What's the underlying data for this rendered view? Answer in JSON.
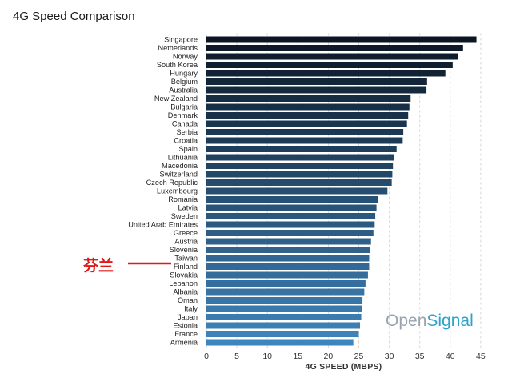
{
  "header": {
    "title": "4G Speed Comparison"
  },
  "watermark": {
    "part1": "Open",
    "part2": "Signal"
  },
  "annotation": {
    "text": "芬兰",
    "target": "Finland",
    "color": "#e01818"
  },
  "chart_data": {
    "type": "bar",
    "orientation": "horizontal",
    "title": "4G Speed Comparison",
    "xlabel": "4G SPEED (MBPS)",
    "ylabel": "",
    "xlim": [
      0,
      45
    ],
    "xticks": [
      0,
      5,
      10,
      15,
      20,
      25,
      30,
      35,
      40,
      45
    ],
    "grid": "vertical dashed",
    "categories": [
      "Singapore",
      "Netherlands",
      "Norway",
      "South Korea",
      "Hungary",
      "Belgium",
      "Australia",
      "New Zealand",
      "Bulgaria",
      "Denmark",
      "Canada",
      "Serbia",
      "Croatia",
      "Spain",
      "Lithuania",
      "Macedonia",
      "Switzerland",
      "Czech Republic",
      "Luxembourg",
      "Romania",
      "Latvia",
      "Sweden",
      "United Arab Emirates",
      "Greece",
      "Austria",
      "Slovenia",
      "Taiwan",
      "Finland",
      "Slovakia",
      "Lebanon",
      "Albania",
      "Oman",
      "Italy",
      "Japan",
      "Estonia",
      "France",
      "Armenia"
    ],
    "values": [
      44.3,
      42.1,
      41.3,
      40.4,
      39.2,
      36.2,
      36.1,
      33.5,
      33.3,
      33.1,
      32.9,
      32.3,
      32.2,
      31.2,
      30.8,
      30.6,
      30.5,
      30.4,
      29.7,
      28.1,
      27.9,
      27.7,
      27.6,
      27.4,
      27.0,
      26.8,
      26.7,
      26.7,
      26.5,
      26.1,
      25.9,
      25.6,
      25.5,
      25.4,
      25.2,
      25.0,
      24.1
    ],
    "colors": {
      "top": "#0c1623",
      "bottom": "#3f85bd"
    }
  }
}
